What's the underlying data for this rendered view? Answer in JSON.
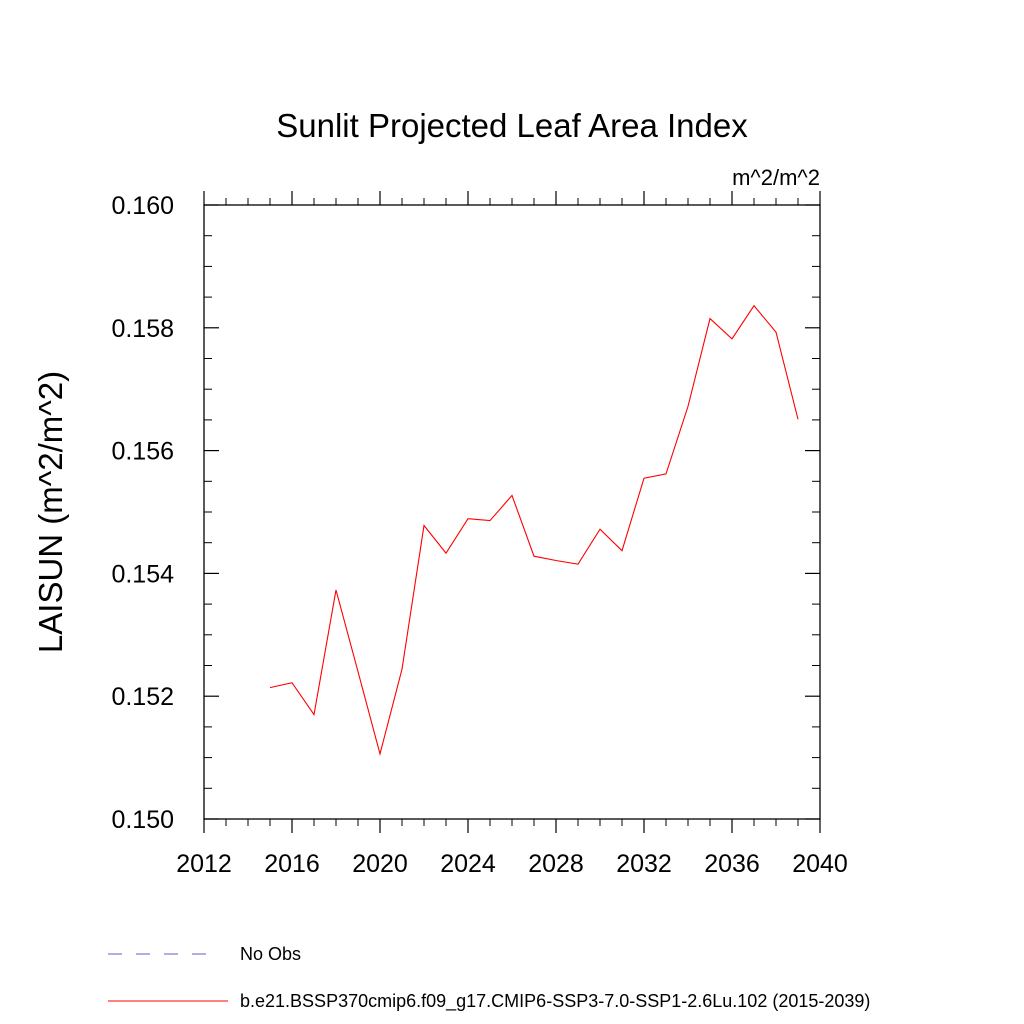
{
  "chart_data": {
    "type": "line",
    "title": "Sunlit Projected Leaf Area Index",
    "units_label": "m^2/m^2",
    "ylabel": "LAISUN  (m^2/m^2)",
    "xlabel": "",
    "xlim": [
      2012,
      2040
    ],
    "ylim": [
      0.15,
      0.16
    ],
    "x_ticks": [
      "2012",
      "2016",
      "2020",
      "2024",
      "2028",
      "2032",
      "2036",
      "2040"
    ],
    "y_ticks": [
      "0.150",
      "0.152",
      "0.154",
      "0.156",
      "0.158",
      "0.160"
    ],
    "grid": false,
    "legend_position": "bottom",
    "series": [
      {
        "name": "b.e21.BSSP370cmip6.f09_g17.CMIP6-SSP3-7.0-SSP1-2.6Lu.102 (2015-2039)",
        "color": "#ff0000",
        "x": [
          2015,
          2016,
          2017,
          2018,
          2019,
          2020,
          2021,
          2022,
          2023,
          2024,
          2025,
          2026,
          2027,
          2028,
          2029,
          2030,
          2031,
          2032,
          2033,
          2034,
          2035,
          2036,
          2037,
          2038,
          2039
        ],
        "values": [
          0.15214,
          0.15222,
          0.1517,
          0.15373,
          0.1524,
          0.15106,
          0.15244,
          0.15478,
          0.15433,
          0.15489,
          0.15486,
          0.15527,
          0.15428,
          0.15421,
          0.15415,
          0.15472,
          0.15437,
          0.15555,
          0.15562,
          0.15672,
          0.15815,
          0.15782,
          0.15836,
          0.15793,
          0.15651
        ]
      }
    ],
    "legend": [
      {
        "label": "No Obs",
        "color": "#6a5acd",
        "style": "dashed"
      },
      {
        "label": "b.e21.BSSP370cmip6.f09_g17.CMIP6-SSP3-7.0-SSP1-2.6Lu.102 (2015-2039)",
        "color": "#ff0000",
        "style": "solid"
      }
    ]
  }
}
